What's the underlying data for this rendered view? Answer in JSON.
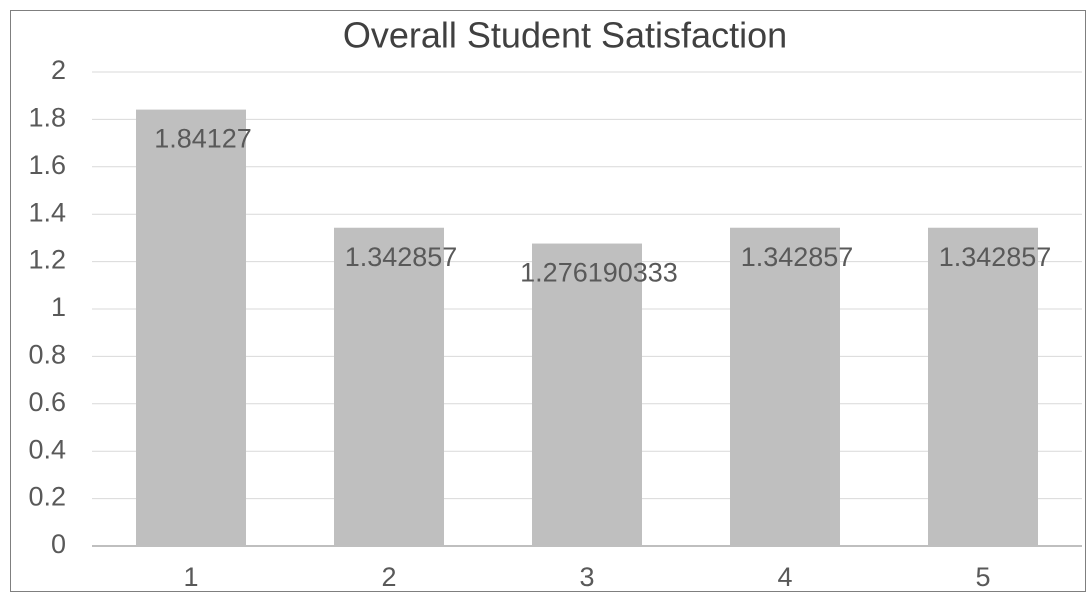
{
  "chart_data": {
    "type": "bar",
    "title": "Overall Student Satisfaction",
    "categories": [
      "1",
      "2",
      "3",
      "4",
      "5"
    ],
    "values": [
      1.84127,
      1.342857,
      1.276190333,
      1.342857,
      1.342857
    ],
    "color": "#bfbfbf",
    "ylim": [
      0,
      2
    ],
    "yticks": [
      0,
      0.2,
      0.4,
      0.6,
      0.8,
      1,
      1.2,
      1.4,
      1.6,
      1.8,
      2
    ],
    "grid": true
  }
}
